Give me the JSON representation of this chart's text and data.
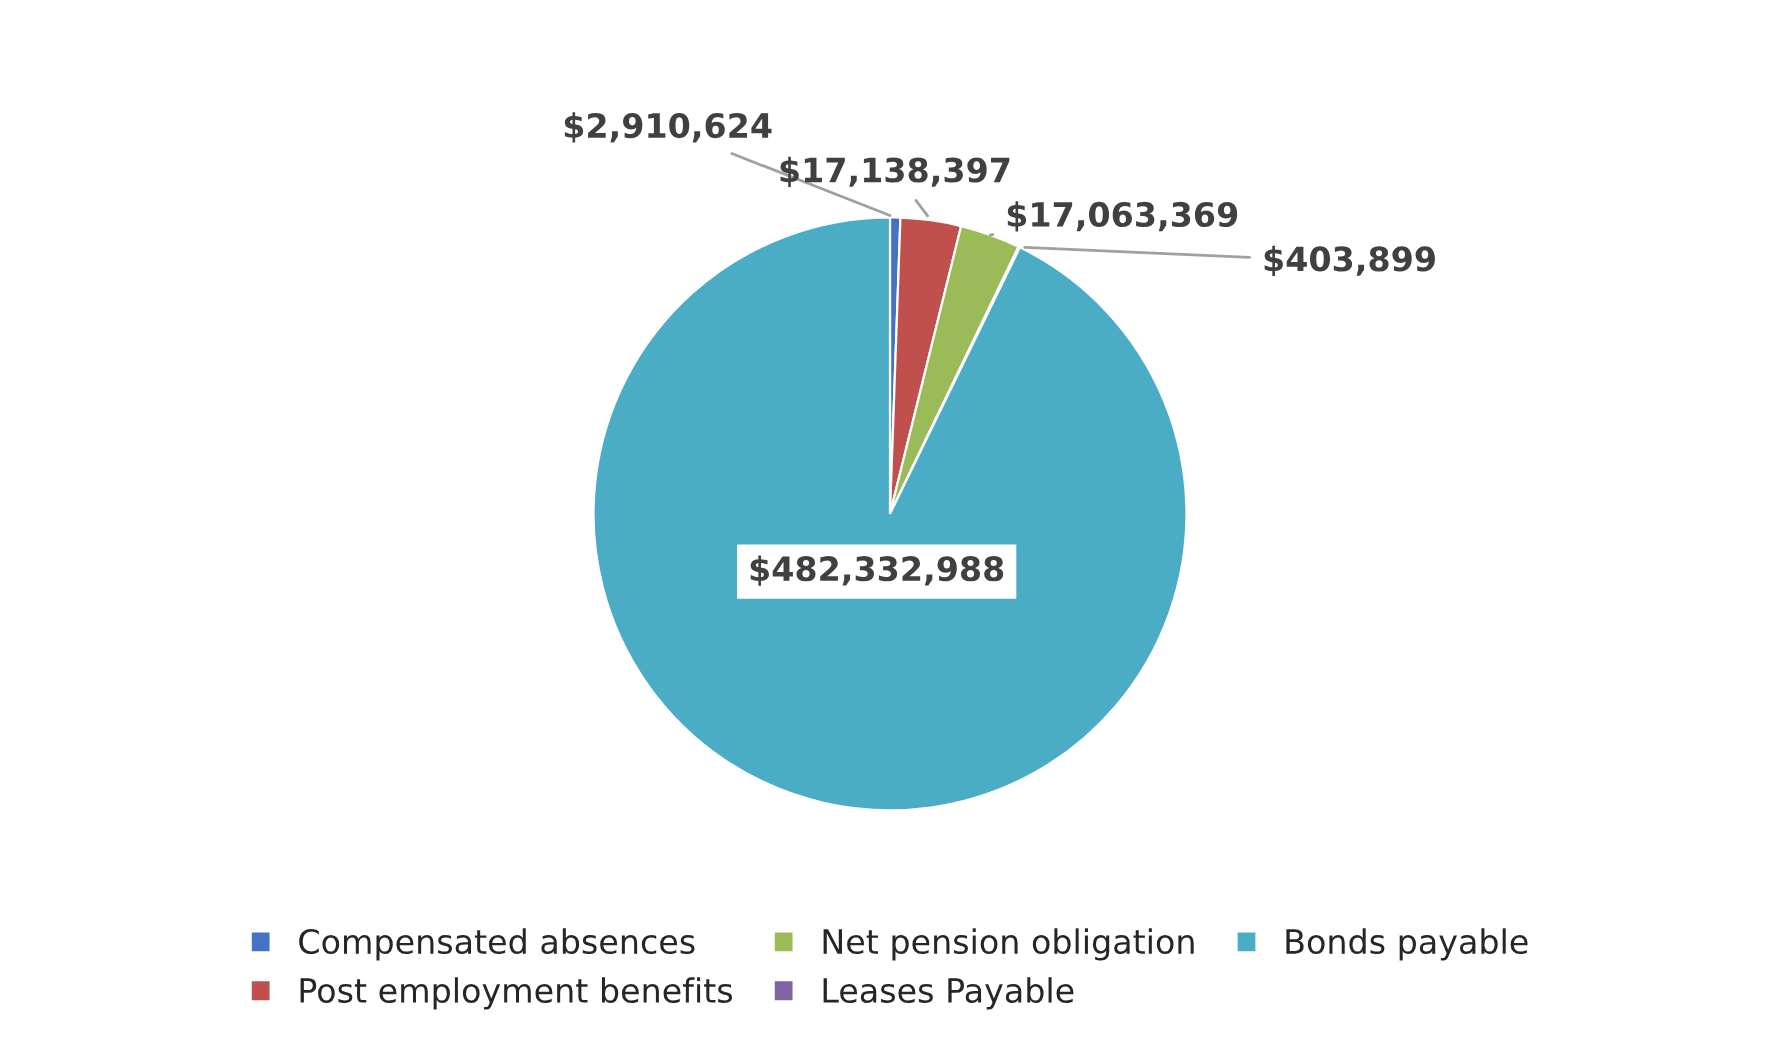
{
  "chart_data": {
    "type": "pie",
    "categories": [
      "Compensated absences",
      "Post employment benefits",
      "Net pension obligation",
      "Leases Payable",
      "Bonds payable"
    ],
    "values": [
      2910624,
      17138397,
      17063369,
      403899,
      482332988
    ],
    "colors": [
      "#4472c4",
      "#c0504d",
      "#9bbb59",
      "#8064a2",
      "#4bacc6"
    ],
    "value_labels": [
      "$2,910,624",
      "$17,138,397",
      "$17,063,369",
      "$403,899",
      "$482,332,988"
    ],
    "legend": "bottom"
  }
}
